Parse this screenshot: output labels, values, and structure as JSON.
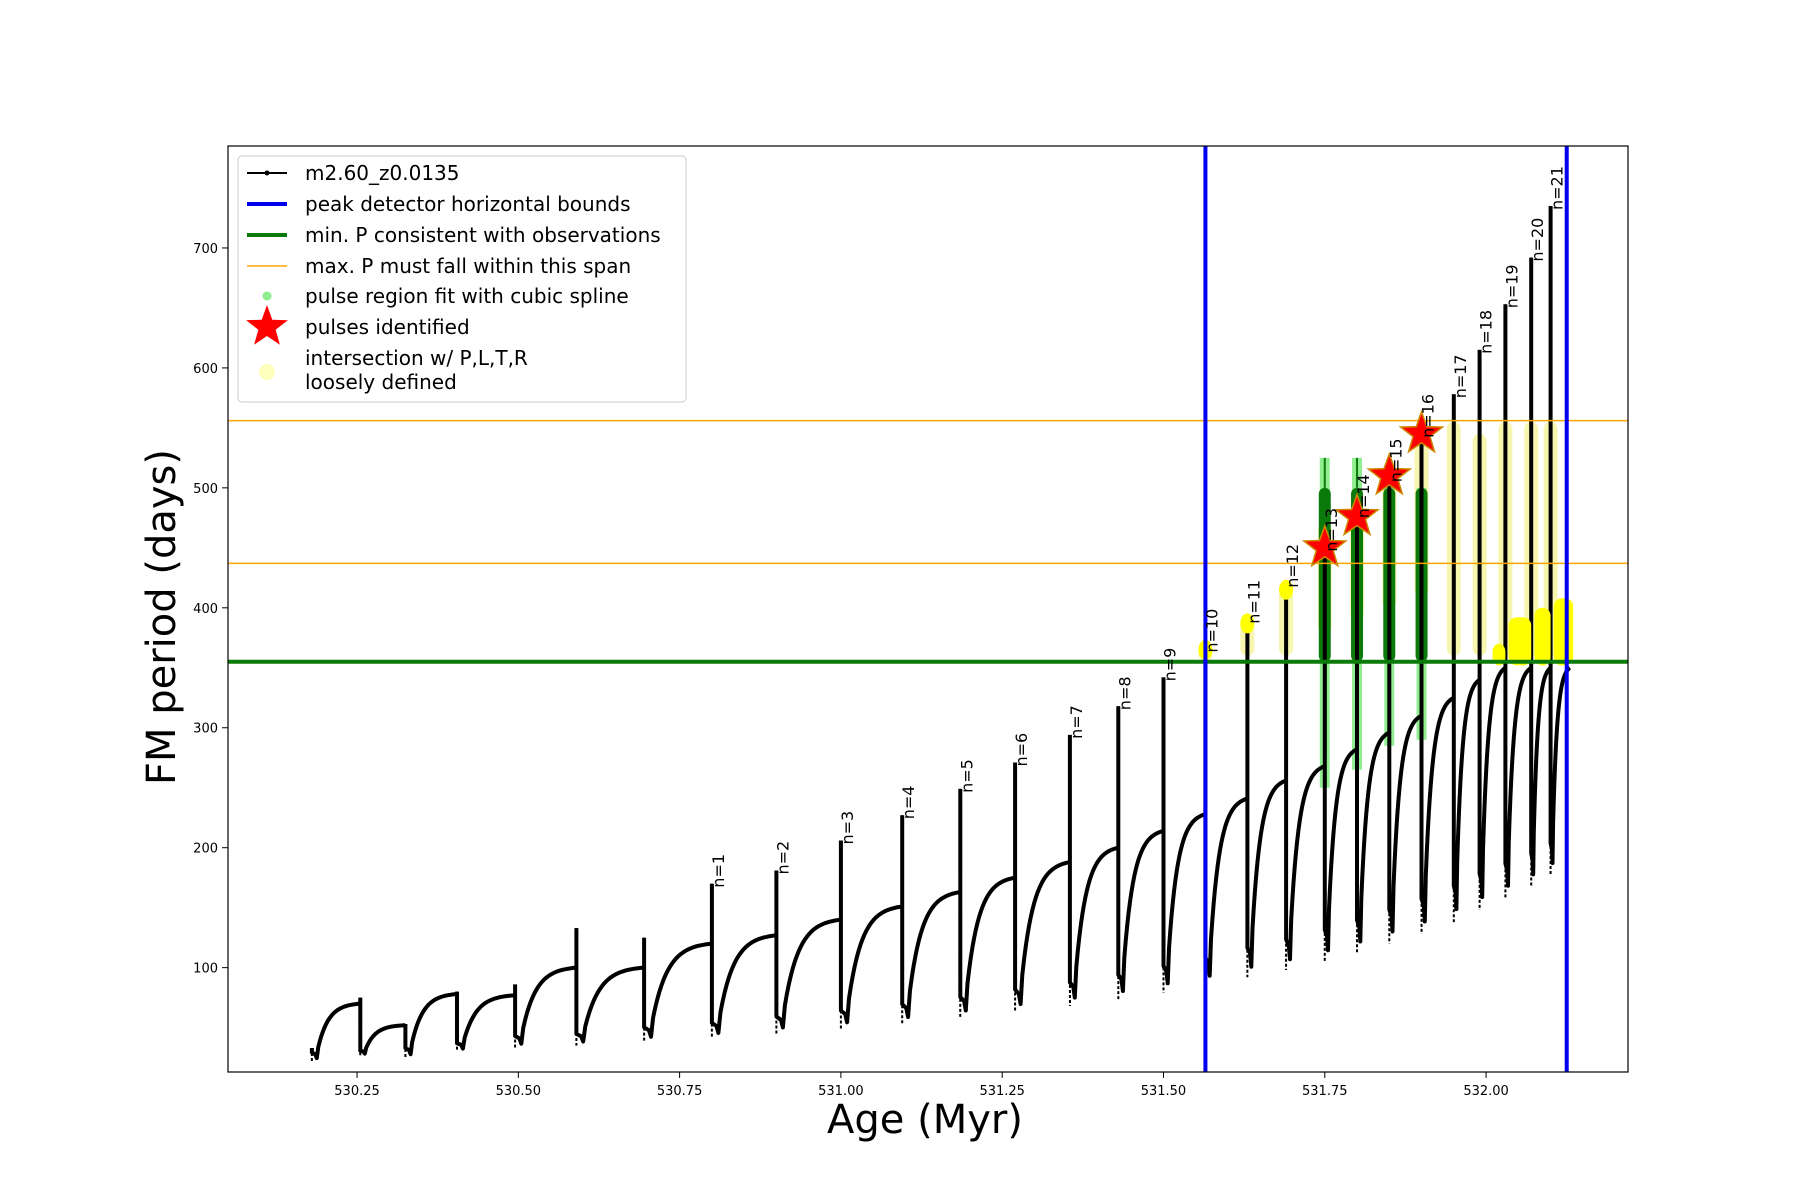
{
  "chart_data": {
    "type": "line",
    "xlabel": "Age (Myr)",
    "ylabel": "FM period (days)",
    "xlim": [
      530.05,
      532.22
    ],
    "ylim": [
      13,
      785
    ],
    "x_ticks": [
      530.25,
      530.5,
      530.75,
      531.0,
      531.25,
      531.5,
      531.75,
      532.0
    ],
    "x_tick_labels": [
      "530.25",
      "530.50",
      "530.75",
      "531.00",
      "531.25",
      "531.50",
      "531.75",
      "532.00"
    ],
    "y_ticks": [
      100,
      200,
      300,
      400,
      500,
      600,
      700
    ],
    "y_tick_labels": [
      "100",
      "200",
      "300",
      "400",
      "500",
      "600",
      "700"
    ],
    "grid": false,
    "legend_position": "top-left",
    "legend": [
      {
        "label": "m2.60_z0.0135",
        "kind": "line-marker",
        "color": "#000000"
      },
      {
        "label": "peak detector horizontal bounds",
        "kind": "line",
        "color": "#0000ee"
      },
      {
        "label": "min. P consistent with observations",
        "kind": "line",
        "color": "#0a7a0a"
      },
      {
        "label": "max. P must fall within this span",
        "kind": "thin-line",
        "color": "#ffa500"
      },
      {
        "label": "pulse region fit with cubic spline",
        "kind": "dot",
        "color": "#90ee90"
      },
      {
        "label": "pulses identified",
        "kind": "star",
        "color": "#ff0000"
      },
      {
        "label": "intersection w/ P,L,T,R\nloosely defined",
        "kind": "big-dot",
        "color": "#ffffbb"
      }
    ],
    "vertical_bounds": [
      531.565,
      532.125
    ],
    "min_period_line": 355,
    "max_period_span": [
      437,
      556
    ],
    "colors": {
      "track": "#000000",
      "bounds": "#0000ee",
      "min_line": "#0a7a0a",
      "max_span": "#ffa500",
      "spline_fill": "#90ee90",
      "spline_dark": "#0a7a0a",
      "stars": "#ff0000",
      "intersection": "#ffff00",
      "intersection_pale": "#f5f5a0"
    },
    "cycles": [
      {
        "x0": 530.18,
        "x1": 530.255,
        "ymin": 22,
        "ymax": 70,
        "spike": 33
      },
      {
        "x0": 530.255,
        "x1": 530.325,
        "ymin": 27,
        "ymax": 52,
        "spike": 75
      },
      {
        "x0": 530.325,
        "x1": 530.405,
        "ymin": 25,
        "ymax": 78,
        "spike": 53
      },
      {
        "x0": 530.405,
        "x1": 530.495,
        "ymin": 30,
        "ymax": 77,
        "spike": 80
      },
      {
        "x0": 530.495,
        "x1": 530.59,
        "ymin": 33,
        "ymax": 100,
        "spike": 86
      },
      {
        "x0": 530.59,
        "x1": 530.695,
        "ymin": 35,
        "ymax": 100,
        "spike": 133
      },
      {
        "x0": 530.695,
        "x1": 530.8,
        "ymin": 38,
        "ymax": 120,
        "spike": 125
      },
      {
        "x0": 530.8,
        "x1": 530.9,
        "ymin": 41,
        "ymax": 127,
        "spike": 170
      },
      {
        "x0": 530.9,
        "x1": 531.0,
        "ymin": 45,
        "ymax": 140,
        "spike": 181
      },
      {
        "x0": 531.0,
        "x1": 531.095,
        "ymin": 49,
        "ymax": 151,
        "spike": 206
      },
      {
        "x0": 531.095,
        "x1": 531.185,
        "ymin": 53,
        "ymax": 163,
        "spike": 227
      },
      {
        "x0": 531.185,
        "x1": 531.27,
        "ymin": 58,
        "ymax": 175,
        "spike": 249
      },
      {
        "x0": 531.27,
        "x1": 531.355,
        "ymin": 63,
        "ymax": 188,
        "spike": 271
      },
      {
        "x0": 531.355,
        "x1": 531.43,
        "ymin": 68,
        "ymax": 200,
        "spike": 294
      },
      {
        "x0": 531.43,
        "x1": 531.5,
        "ymin": 73,
        "ymax": 214,
        "spike": 318
      },
      {
        "x0": 531.5,
        "x1": 531.565,
        "ymin": 79,
        "ymax": 228,
        "spike": 342
      },
      {
        "x0": 531.565,
        "x1": 531.63,
        "ymin": 85,
        "ymax": 241,
        "spike": 366
      },
      {
        "x0": 531.63,
        "x1": 531.69,
        "ymin": 92,
        "ymax": 256,
        "spike": 390
      },
      {
        "x0": 531.69,
        "x1": 531.75,
        "ymin": 98,
        "ymax": 268,
        "spike": 420
      },
      {
        "x0": 531.75,
        "x1": 531.8,
        "ymin": 105,
        "ymax": 282,
        "spike": 450
      },
      {
        "x0": 531.8,
        "x1": 531.85,
        "ymin": 112,
        "ymax": 296,
        "spike": 478
      },
      {
        "x0": 531.85,
        "x1": 531.9,
        "ymin": 120,
        "ymax": 310,
        "spike": 508
      },
      {
        "x0": 531.9,
        "x1": 531.95,
        "ymin": 128,
        "ymax": 325,
        "spike": 545
      },
      {
        "x0": 531.95,
        "x1": 531.99,
        "ymin": 138,
        "ymax": 340,
        "spike": 578
      },
      {
        "x0": 531.99,
        "x1": 532.03,
        "ymin": 148,
        "ymax": 350,
        "spike": 615
      },
      {
        "x0": 532.03,
        "x1": 532.07,
        "ymin": 158,
        "ymax": 350,
        "spike": 653
      },
      {
        "x0": 532.07,
        "x1": 532.1,
        "ymin": 168,
        "ymax": 350,
        "spike": 692
      },
      {
        "x0": 532.1,
        "x1": 532.13,
        "ymin": 178,
        "ymax": 350,
        "spike": 735
      }
    ],
    "pulse_labels": [
      {
        "text": "n=1",
        "x": 530.8,
        "y": 170
      },
      {
        "text": "n=2",
        "x": 530.9,
        "y": 181
      },
      {
        "text": "n=3",
        "x": 531.0,
        "y": 206
      },
      {
        "text": "n=4",
        "x": 531.095,
        "y": 227
      },
      {
        "text": "n=5",
        "x": 531.185,
        "y": 249
      },
      {
        "text": "n=6",
        "x": 531.27,
        "y": 271
      },
      {
        "text": "n=7",
        "x": 531.355,
        "y": 294
      },
      {
        "text": "n=8",
        "x": 531.43,
        "y": 318
      },
      {
        "text": "n=9",
        "x": 531.5,
        "y": 342
      },
      {
        "text": "n=10",
        "x": 531.565,
        "y": 366
      },
      {
        "text": "n=11",
        "x": 531.63,
        "y": 390
      },
      {
        "text": "n=12",
        "x": 531.69,
        "y": 420
      },
      {
        "text": "n=13",
        "x": 531.75,
        "y": 450
      },
      {
        "text": "n=14",
        "x": 531.8,
        "y": 478
      },
      {
        "text": "n=15",
        "x": 531.85,
        "y": 508
      },
      {
        "text": "n=16",
        "x": 531.9,
        "y": 545
      },
      {
        "text": "n=17",
        "x": 531.95,
        "y": 578
      },
      {
        "text": "n=18",
        "x": 531.99,
        "y": 615
      },
      {
        "text": "n=19",
        "x": 532.03,
        "y": 653
      },
      {
        "text": "n=20",
        "x": 532.07,
        "y": 692
      },
      {
        "text": "n=21",
        "x": 532.1,
        "y": 735
      }
    ],
    "spline_regions": [
      {
        "x": 531.75,
        "ymin": 250,
        "ymax": 525
      },
      {
        "x": 531.8,
        "ymin": 265,
        "ymax": 525
      },
      {
        "x": 531.85,
        "ymin": 285,
        "ymax": 500
      },
      {
        "x": 531.9,
        "ymin": 290,
        "ymax": 500
      }
    ],
    "pulses_identified": [
      {
        "x": 531.75,
        "y": 450
      },
      {
        "x": 531.8,
        "y": 476
      },
      {
        "x": 531.85,
        "y": 510
      },
      {
        "x": 531.9,
        "y": 545
      }
    ],
    "intersection_regions": [
      {
        "x": 531.565,
        "ymin": 355,
        "ymax": 370
      },
      {
        "x": 531.63,
        "ymin": 360,
        "ymax": 392
      },
      {
        "x": 531.69,
        "ymin": 360,
        "ymax": 420
      },
      {
        "x": 531.75,
        "ymin": 380,
        "ymax": 470
      },
      {
        "x": 531.8,
        "ymin": 390,
        "ymax": 480
      },
      {
        "x": 531.85,
        "ymin": 400,
        "ymax": 520
      },
      {
        "x": 531.9,
        "ymin": 410,
        "ymax": 545
      },
      {
        "x": 531.95,
        "ymin": 360,
        "ymax": 555
      },
      {
        "x": 531.99,
        "ymin": 360,
        "ymax": 545
      },
      {
        "x": 532.03,
        "ymin": 360,
        "ymax": 555
      },
      {
        "x": 532.07,
        "ymin": 360,
        "ymax": 555
      },
      {
        "x": 532.1,
        "ymin": 360,
        "ymax": 555
      }
    ],
    "intersection_blobs": [
      {
        "x0": 532.01,
        "x1": 532.03,
        "ymin": 352,
        "ymax": 370
      },
      {
        "x0": 532.035,
        "x1": 532.07,
        "ymin": 352,
        "ymax": 392
      },
      {
        "x0": 532.075,
        "x1": 532.1,
        "ymin": 352,
        "ymax": 400
      },
      {
        "x0": 532.105,
        "x1": 532.135,
        "ymin": 352,
        "ymax": 408
      }
    ]
  }
}
